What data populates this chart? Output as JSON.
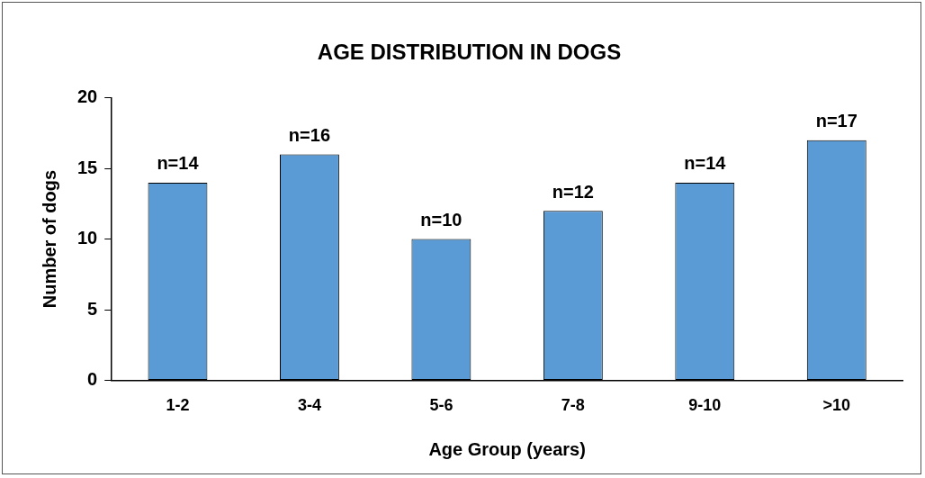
{
  "chart_data": {
    "type": "bar",
    "title": "AGE DISTRIBUTION IN DOGS",
    "xlabel": "Age Group (years)",
    "ylabel": "Number of dogs",
    "categories": [
      "1-2",
      "3-4",
      "5-6",
      "7-8",
      "9-10",
      ">10"
    ],
    "values": [
      14,
      16,
      10,
      12,
      14,
      17
    ],
    "value_labels": [
      "n=14",
      "n=16",
      "n=10",
      "n=12",
      "n=14",
      "n=17"
    ],
    "color": "#5b9bd5",
    "ylim": [
      0,
      20
    ],
    "yticks": [
      0,
      5,
      10,
      15,
      20
    ],
    "grid": false,
    "legend": false
  }
}
